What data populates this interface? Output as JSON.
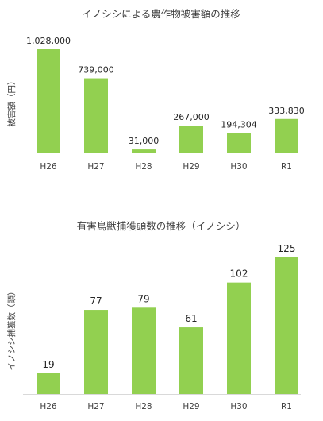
{
  "chart_data": [
    {
      "type": "bar",
      "title": "イノシシによる農作物被害額の推移",
      "ylabel": "被害額（円）",
      "xlabel": "",
      "categories": [
        "H26",
        "H27",
        "H28",
        "H29",
        "H30",
        "R1"
      ],
      "values": [
        1028000,
        739000,
        31000,
        267000,
        194304,
        333830
      ],
      "value_labels": [
        "1,028,000",
        "739,000",
        "31,000",
        "267,000",
        "194,304",
        "333,830"
      ],
      "ylim": [
        0,
        1028000
      ],
      "grid": false,
      "legend": "none",
      "bar_color": "#92d050"
    },
    {
      "type": "bar",
      "title": "有害鳥獣捕獲頭数の推移（イノシシ）",
      "ylabel": "イノシシ捕獲数（頭）",
      "xlabel": "",
      "categories": [
        "H26",
        "H27",
        "H28",
        "H29",
        "H30",
        "R1"
      ],
      "values": [
        19,
        77,
        79,
        61,
        102,
        125
      ],
      "value_labels": [
        "19",
        "77",
        "79",
        "61",
        "102",
        "125"
      ],
      "ylim": [
        0,
        125
      ],
      "grid": false,
      "legend": "none",
      "bar_color": "#92d050"
    }
  ]
}
